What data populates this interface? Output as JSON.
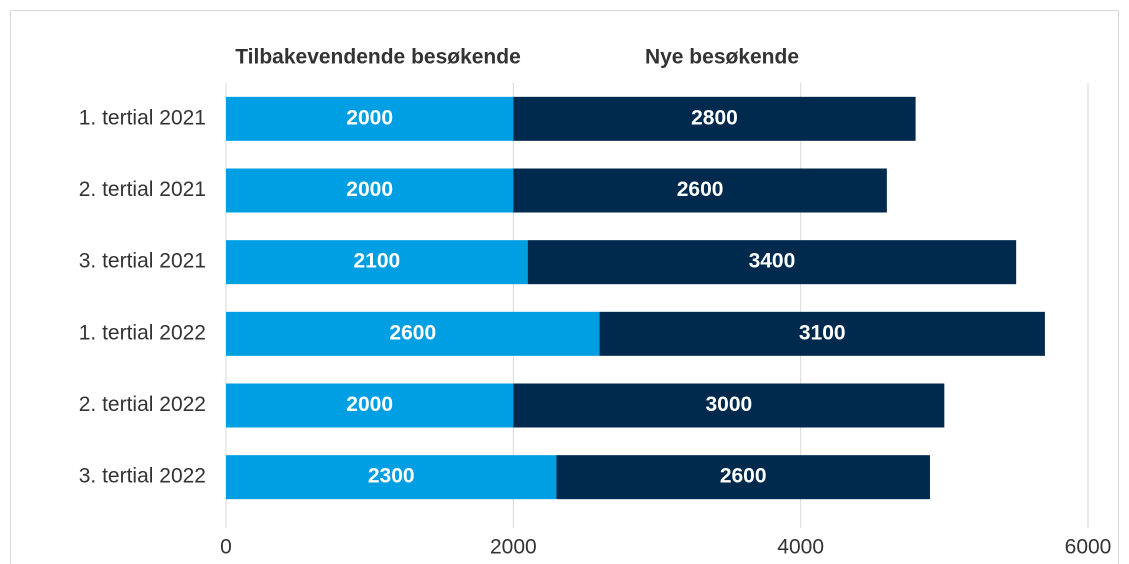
{
  "chart_data": {
    "type": "bar",
    "orientation": "horizontal",
    "stacked": true,
    "categories": [
      "1. tertial 2021",
      "2. tertial 2021",
      "3. tertial 2021",
      "1. tertial 2022",
      "2. tertial 2022",
      "3. tertial 2022"
    ],
    "series": [
      {
        "name": "Tilbakevendende besøkende",
        "color": "#009fe3",
        "values": [
          2000,
          2000,
          2100,
          2600,
          2000,
          2300
        ]
      },
      {
        "name": "Nye besøkende",
        "color": "#002a4d",
        "values": [
          2800,
          2600,
          3400,
          3100,
          3000,
          2600
        ]
      }
    ],
    "xlim": [
      0,
      6000
    ],
    "xticks": [
      0,
      2000,
      4000,
      6000
    ],
    "grid": true,
    "legend": "top"
  }
}
